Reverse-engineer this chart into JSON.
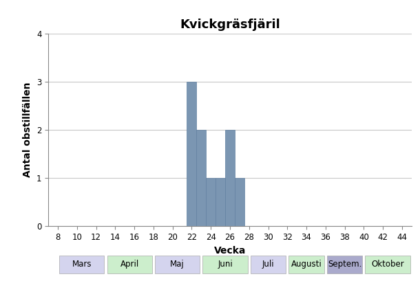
{
  "title": "Kvickgräsfjäril",
  "xlabel": "Vecka",
  "ylabel": "Antal obstillfällen",
  "xlim": [
    7,
    45
  ],
  "ylim": [
    0,
    4
  ],
  "xticks": [
    8,
    10,
    12,
    14,
    16,
    18,
    20,
    22,
    24,
    26,
    28,
    30,
    32,
    34,
    36,
    38,
    40,
    42,
    44
  ],
  "yticks": [
    0,
    1,
    2,
    3,
    4
  ],
  "bar_data": {
    "22": 3,
    "23": 2,
    "24": 1,
    "25": 1,
    "26": 2,
    "27": 1
  },
  "bar_color": "#7b96b2",
  "bar_edgecolor": "#6080a0",
  "grid_color": "#c8c8c8",
  "bg_color": "#ffffff",
  "plot_bg_color": "#ffffff",
  "month_labels": [
    {
      "text": "Mars",
      "x_start": 8,
      "x_end": 13,
      "color": "#d4d4ee"
    },
    {
      "text": "April",
      "x_start": 13,
      "x_end": 18,
      "color": "#cceecc"
    },
    {
      "text": "Maj",
      "x_start": 18,
      "x_end": 23,
      "color": "#d4d4ee"
    },
    {
      "text": "Juni",
      "x_start": 23,
      "x_end": 28,
      "color": "#cceecc"
    },
    {
      "text": "Juli",
      "x_start": 28,
      "x_end": 32,
      "color": "#d4d4ee"
    },
    {
      "text": "Augusti",
      "x_start": 32,
      "x_end": 36,
      "color": "#cceecc"
    },
    {
      "text": "Septem.",
      "x_start": 36,
      "x_end": 40,
      "color": "#aaaacc"
    },
    {
      "text": "Oktober",
      "x_start": 40,
      "x_end": 45,
      "color": "#cceecc"
    }
  ],
  "title_fontsize": 13,
  "axis_label_fontsize": 10,
  "tick_fontsize": 8.5,
  "month_fontsize": 8.5
}
